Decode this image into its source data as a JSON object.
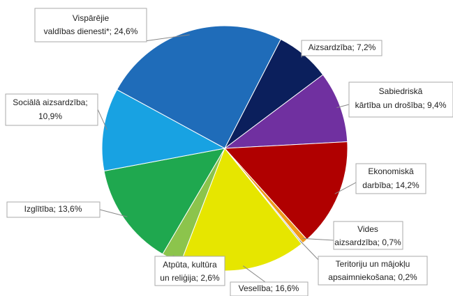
{
  "chart_data": {
    "type": "pie",
    "values": [
      24.6,
      7.2,
      9.4,
      14.2,
      0.7,
      0.2,
      16.6,
      2.6,
      13.6,
      10.9
    ],
    "value_labels": [
      [
        "Vispārējie",
        "valdības dienesti*; 24,6%"
      ],
      [
        "Aizsardzība; 7,2%"
      ],
      [
        "Sabiedriskā",
        "kārtība un drošība; 9,4%"
      ],
      [
        "Ekonomiskā",
        "darbība; 14,2%"
      ],
      [
        "Vides",
        "aizsardzība; 0,7%"
      ],
      [
        "Teritoriju un mājokļu",
        "apsaimniekošana; 0,2%"
      ],
      [
        "Veselība; 16,6%"
      ],
      [
        "Atpūta,  kultūra",
        "un reliģija; 2,6%"
      ],
      [
        "Izglītība;  13,6%"
      ],
      [
        "Sociālā aizsardzība;",
        "10,9%"
      ]
    ],
    "colors": [
      "#1f6cb9",
      "#0b1f5c",
      "#7030a0",
      "#b00000",
      "#f09a1a",
      "#b8b8b8",
      "#e6e600",
      "#8cc44c",
      "#1fa84f",
      "#18a2e2"
    ]
  }
}
